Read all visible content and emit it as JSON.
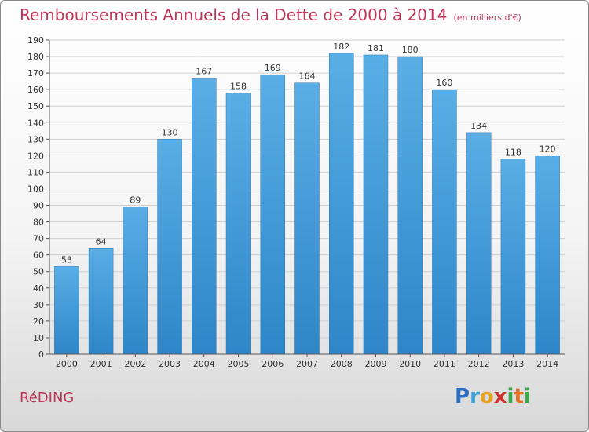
{
  "header": {
    "title": "Remboursements Annuels de la Dette de 2000 à 2014",
    "unit": "(en milliers d'€)"
  },
  "commune": "RéDING",
  "logo": {
    "letters": [
      "P",
      "r",
      "o",
      "x",
      "i",
      "t",
      "i"
    ],
    "colors": [
      "#2a6fc4",
      "#3aa0d8",
      "#e8a020",
      "#d03030",
      "#3aa84a",
      "#e07020",
      "#3aa84a"
    ]
  },
  "colors": {
    "bar_light": "#5aaee6",
    "bar_dark": "#2e86c8",
    "title": "#c0345a"
  },
  "chart_data": {
    "type": "bar",
    "title": "Remboursements Annuels de la Dette de 2000 à 2014",
    "xlabel": "",
    "ylabel": "",
    "categories": [
      "2000",
      "2001",
      "2002",
      "2003",
      "2004",
      "2005",
      "2006",
      "2007",
      "2008",
      "2009",
      "2010",
      "2011",
      "2012",
      "2013",
      "2014"
    ],
    "values": [
      53,
      64,
      89,
      130,
      167,
      158,
      169,
      164,
      182,
      181,
      180,
      160,
      134,
      118,
      120
    ],
    "ylim": [
      0,
      190
    ],
    "yticks": [
      0,
      10,
      20,
      30,
      40,
      50,
      60,
      70,
      80,
      90,
      100,
      110,
      120,
      130,
      140,
      150,
      160,
      170,
      180,
      190
    ],
    "grid": true,
    "legend": "none"
  }
}
